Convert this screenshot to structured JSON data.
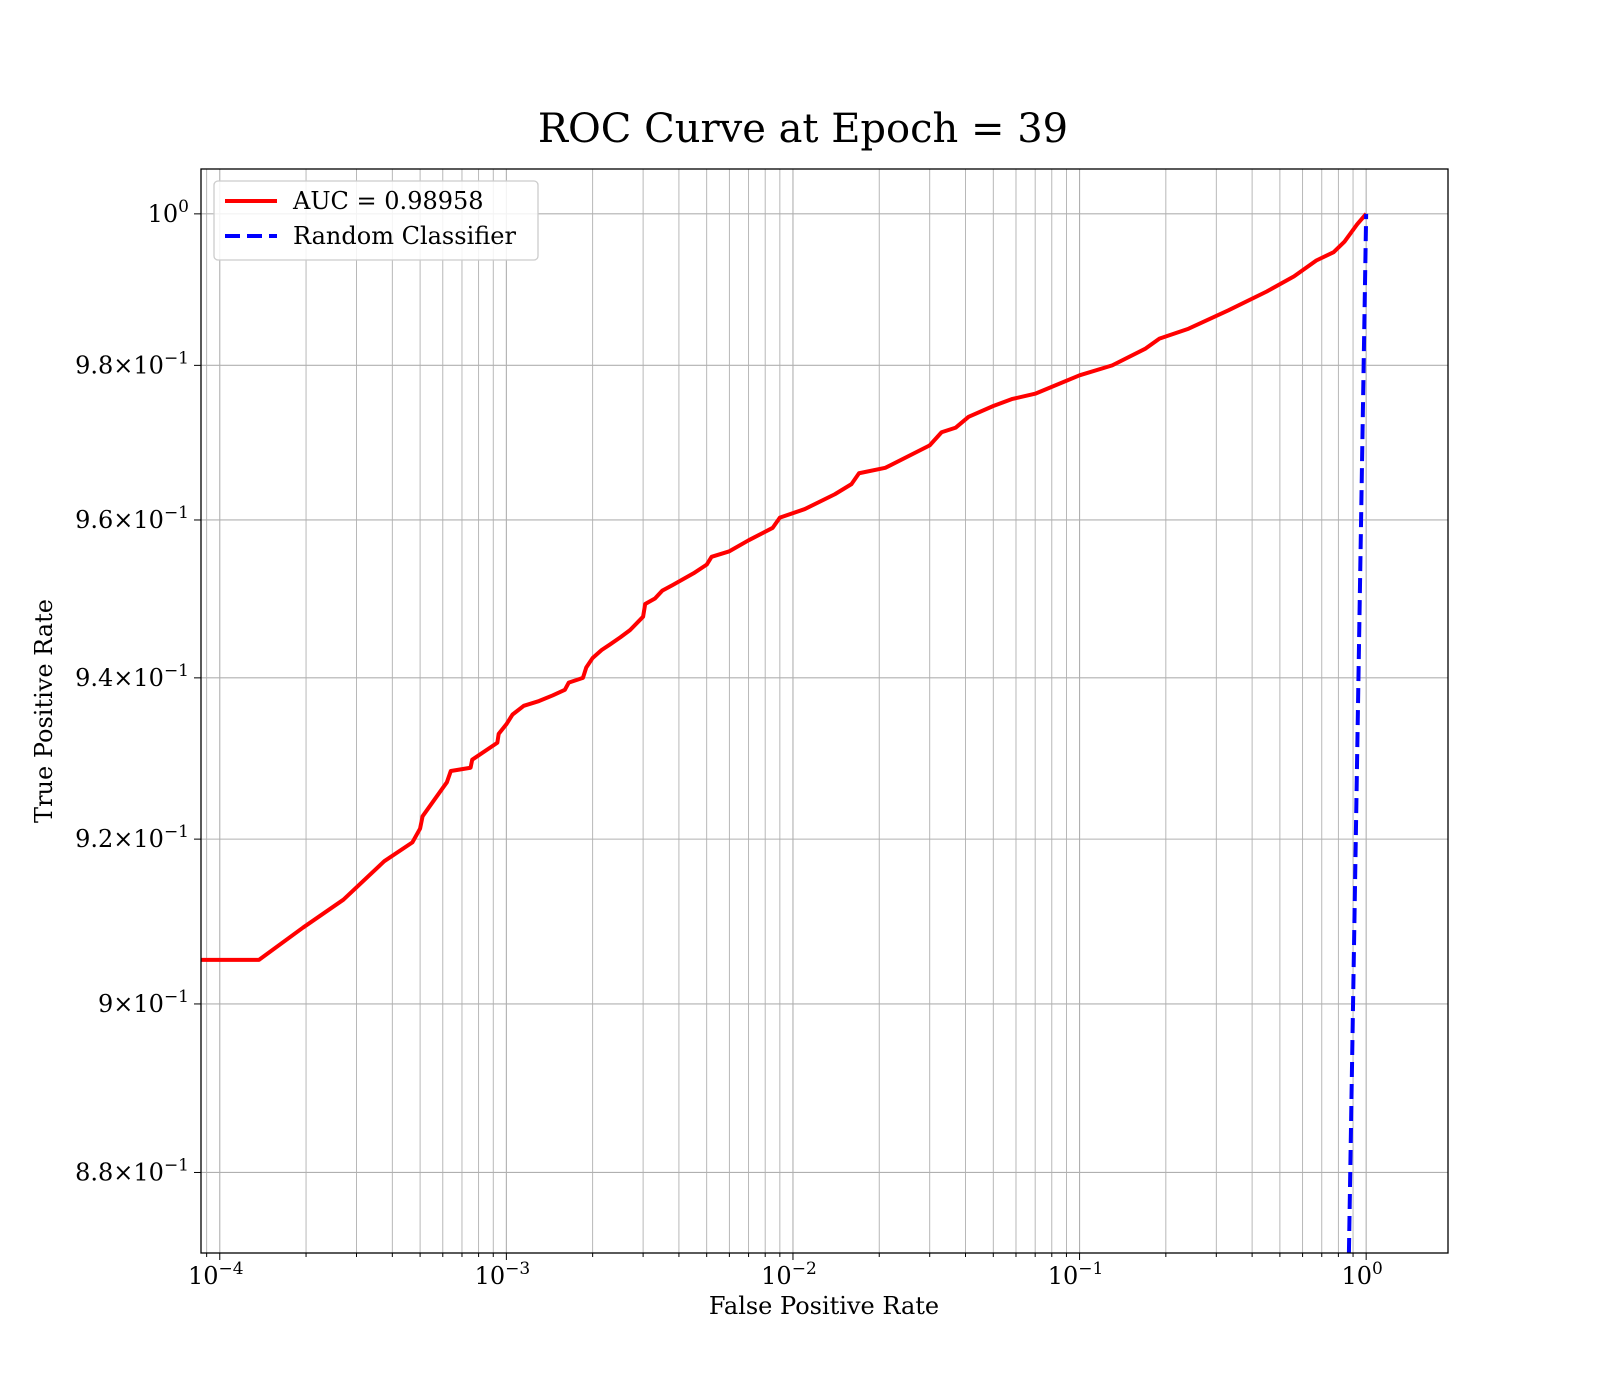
{
  "chart_data": {
    "type": "line",
    "title": "ROC Curve at Epoch = 39",
    "xlabel": "False Positive Rate",
    "ylabel": "True Positive Rate",
    "xscale": "log",
    "yscale": "log",
    "xlim": [
      8.6e-05,
      1.93
    ],
    "ylim": [
      0.8706,
      1.006
    ],
    "grid": "both major and minor",
    "legend_position": "top-left",
    "x_ticks": [
      {
        "value": 0.0001,
        "base": "10",
        "exp": "−4"
      },
      {
        "value": 0.001,
        "base": "10",
        "exp": "−3"
      },
      {
        "value": 0.01,
        "base": "10",
        "exp": "−2"
      },
      {
        "value": 0.1,
        "base": "10",
        "exp": "−1"
      },
      {
        "value": 1,
        "base": "10",
        "exp": "0"
      }
    ],
    "y_ticks": [
      {
        "value": 0.88,
        "mant": "8.8",
        "base": "10",
        "exp": "−1"
      },
      {
        "value": 0.9,
        "mant": "9",
        "base": "10",
        "exp": "−1"
      },
      {
        "value": 0.92,
        "mant": "9.2",
        "base": "10",
        "exp": "−1"
      },
      {
        "value": 0.94,
        "mant": "9.4",
        "base": "10",
        "exp": "−1"
      },
      {
        "value": 0.96,
        "mant": "9.6",
        "base": "10",
        "exp": "−1"
      },
      {
        "value": 0.98,
        "mant": "9.8",
        "base": "10",
        "exp": "−1"
      },
      {
        "value": 1.0,
        "mant": "",
        "base": "10",
        "exp": "0"
      }
    ],
    "series": [
      {
        "name": "AUC = 0.98958",
        "color": "#ff0000",
        "style": "solid",
        "points": [
          [
            8.6e-05,
            0.9053
          ],
          [
            0.000137,
            0.9053
          ],
          [
            0.000195,
            0.9092
          ],
          [
            0.00027,
            0.9126
          ],
          [
            0.000375,
            0.9173
          ],
          [
            0.00047,
            0.9196
          ],
          [
            0.0005,
            0.9213
          ],
          [
            0.00051,
            0.9228
          ],
          [
            0.0006,
            0.9263
          ],
          [
            0.00062,
            0.927
          ],
          [
            0.00064,
            0.9284
          ],
          [
            0.00075,
            0.9288
          ],
          [
            0.00076,
            0.9298
          ],
          [
            0.00093,
            0.9319
          ],
          [
            0.00094,
            0.933
          ],
          [
            0.001,
            0.9342
          ],
          [
            0.00105,
            0.9354
          ],
          [
            0.00115,
            0.9365
          ],
          [
            0.0013,
            0.9371
          ],
          [
            0.00145,
            0.9378
          ],
          [
            0.0016,
            0.9385
          ],
          [
            0.00165,
            0.9394
          ],
          [
            0.00185,
            0.94
          ],
          [
            0.0019,
            0.9413
          ],
          [
            0.002,
            0.9425
          ],
          [
            0.00215,
            0.9435
          ],
          [
            0.0023,
            0.9442
          ],
          [
            0.0025,
            0.9451
          ],
          [
            0.0027,
            0.946
          ],
          [
            0.003,
            0.9477
          ],
          [
            0.00305,
            0.9493
          ],
          [
            0.0033,
            0.95
          ],
          [
            0.0035,
            0.951
          ],
          [
            0.0038,
            0.9517
          ],
          [
            0.0045,
            0.9532
          ],
          [
            0.005,
            0.9543
          ],
          [
            0.0052,
            0.9553
          ],
          [
            0.006,
            0.956
          ],
          [
            0.007,
            0.9574
          ],
          [
            0.0085,
            0.959
          ],
          [
            0.009,
            0.9603
          ],
          [
            0.011,
            0.9614
          ],
          [
            0.014,
            0.9633
          ],
          [
            0.016,
            0.9646
          ],
          [
            0.017,
            0.966
          ],
          [
            0.021,
            0.9667
          ],
          [
            0.03,
            0.9696
          ],
          [
            0.033,
            0.9713
          ],
          [
            0.037,
            0.9719
          ],
          [
            0.041,
            0.9733
          ],
          [
            0.05,
            0.9747
          ],
          [
            0.058,
            0.9756
          ],
          [
            0.07,
            0.9763
          ],
          [
            0.1,
            0.9787
          ],
          [
            0.13,
            0.98
          ],
          [
            0.17,
            0.9822
          ],
          [
            0.19,
            0.9835
          ],
          [
            0.24,
            0.9848
          ],
          [
            0.33,
            0.9872
          ],
          [
            0.45,
            0.9897
          ],
          [
            0.56,
            0.9917
          ],
          [
            0.67,
            0.9938
          ],
          [
            0.77,
            0.9949
          ],
          [
            0.84,
            0.9963
          ],
          [
            0.93,
            0.9986
          ],
          [
            1.0,
            1.0
          ]
        ]
      },
      {
        "name": "Random Classifier",
        "color": "#0000ff",
        "style": "dashed",
        "points": [
          [
            0.8706,
            0.8706
          ],
          [
            1.0,
            1.0
          ]
        ]
      }
    ]
  }
}
